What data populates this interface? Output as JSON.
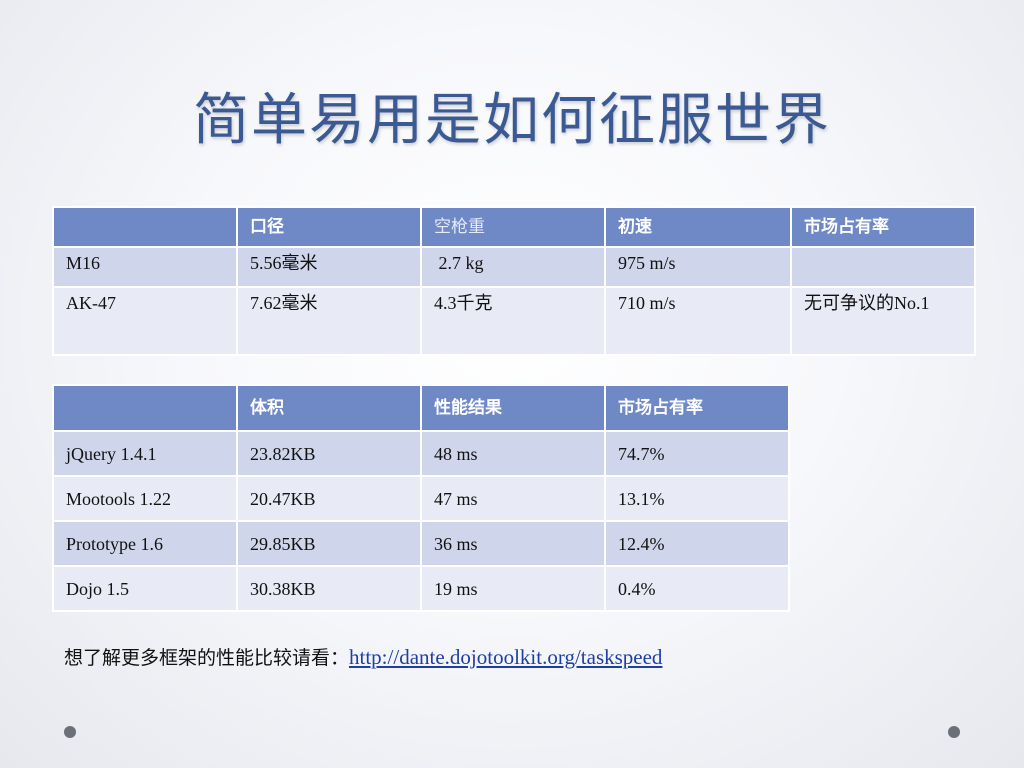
{
  "slide": {
    "title": "简单易用是如何征服世界"
  },
  "table1": {
    "headers": [
      "",
      "口径",
      "空枪重",
      "初速",
      "市场占有率"
    ],
    "rows": [
      [
        "M16",
        "5.56毫米",
        " 2.7 kg",
        "975 m/s",
        ""
      ],
      [
        "AK-47",
        "7.62毫米",
        "4.3千克",
        "710 m/s",
        "无可争议的No.1"
      ]
    ]
  },
  "table2": {
    "headers": [
      "",
      "体积",
      "性能结果",
      "市场占有率"
    ],
    "rows": [
      [
        "jQuery 1.4.1",
        "23.82KB",
        "48 ms",
        "74.7%"
      ],
      [
        "Mootools 1.22",
        "20.47KB",
        "47 ms",
        "13.1%"
      ],
      [
        "Prototype 1.6",
        "29.85KB",
        "36 ms",
        "12.4%"
      ],
      [
        "Dojo 1.5",
        "30.38KB",
        "19 ms",
        "0.4%"
      ]
    ]
  },
  "footer": {
    "label": "想了解更多框架的性能比较请看：",
    "link_text": "http://dante.dojotoolkit.org/taskspeed"
  },
  "colors": {
    "title": "#3b5a93",
    "header_bg": "#6f88c6",
    "row_dark": "#cfd6eb",
    "row_light": "#e8ebf5",
    "link": "#1e3da6"
  }
}
